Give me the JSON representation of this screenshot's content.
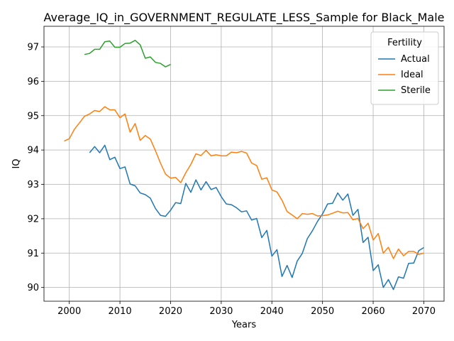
{
  "chart_data": {
    "type": "line",
    "title": "Average_IQ_in_GOVERNMENT_REGULATE_LESS_Sample for Black_Male",
    "xlabel": "Years",
    "ylabel": "IQ",
    "xlim": [
      1995,
      2074
    ],
    "ylim": [
      89.6,
      97.6
    ],
    "xticks": [
      2000,
      2010,
      2020,
      2030,
      2040,
      2050,
      2060,
      2070
    ],
    "yticks": [
      90,
      91,
      92,
      93,
      94,
      95,
      96,
      97
    ],
    "grid": true,
    "legend": {
      "title": "Fertility",
      "placement": "top-right"
    },
    "series": [
      {
        "name": "Actual",
        "color": "#1f77b4",
        "x": [
          2004,
          2005,
          2006,
          2007,
          2008,
          2009,
          2010,
          2011,
          2012,
          2013,
          2014,
          2015,
          2016,
          2017,
          2018,
          2019,
          2020,
          2021,
          2022,
          2023,
          2024,
          2025,
          2026,
          2027,
          2028,
          2029,
          2030,
          2031,
          2032,
          2033,
          2034,
          2035,
          2036,
          2037,
          2038,
          2039,
          2040,
          2041,
          2042,
          2043,
          2044,
          2045,
          2046,
          2047,
          2048,
          2049,
          2050,
          2051,
          2052,
          2053,
          2054,
          2055,
          2056,
          2057,
          2058,
          2059,
          2060,
          2061,
          2062,
          2063,
          2064,
          2065,
          2066,
          2067,
          2068,
          2069,
          2070
        ],
        "y": [
          93.92,
          94.1,
          93.92,
          94.14,
          93.72,
          93.79,
          93.46,
          93.51,
          93.01,
          92.96,
          92.75,
          92.7,
          92.6,
          92.3,
          92.1,
          92.07,
          92.25,
          92.47,
          92.44,
          93.03,
          92.77,
          93.13,
          92.84,
          93.08,
          92.85,
          92.91,
          92.64,
          92.43,
          92.41,
          92.32,
          92.2,
          92.23,
          91.96,
          92.01,
          91.45,
          91.66,
          90.91,
          91.1,
          90.32,
          90.64,
          90.29,
          90.77,
          90.99,
          91.42,
          91.65,
          91.92,
          92.14,
          92.43,
          92.45,
          92.75,
          92.54,
          92.72,
          92.1,
          92.27,
          91.31,
          91.46,
          90.49,
          90.66,
          90.0,
          90.23,
          89.94,
          90.31,
          90.27,
          90.7,
          90.71,
          91.07,
          91.16
        ]
      },
      {
        "name": "Ideal",
        "color": "#ff7f0e",
        "x": [
          1999,
          2000,
          2001,
          2002,
          2003,
          2004,
          2005,
          2006,
          2007,
          2008,
          2009,
          2010,
          2011,
          2012,
          2013,
          2014,
          2015,
          2016,
          2017,
          2018,
          2019,
          2020,
          2021,
          2022,
          2023,
          2024,
          2025,
          2026,
          2027,
          2028,
          2029,
          2030,
          2031,
          2032,
          2033,
          2034,
          2035,
          2036,
          2037,
          2038,
          2039,
          2040,
          2041,
          2042,
          2043,
          2044,
          2045,
          2046,
          2047,
          2048,
          2049,
          2050,
          2051,
          2052,
          2053,
          2054,
          2055,
          2056,
          2057,
          2058,
          2059,
          2060,
          2061,
          2062,
          2063,
          2064,
          2065,
          2066,
          2067,
          2068,
          2069,
          2070
        ],
        "y": [
          94.26,
          94.33,
          94.6,
          94.79,
          94.98,
          95.05,
          95.15,
          95.12,
          95.26,
          95.17,
          95.17,
          94.94,
          95.05,
          94.52,
          94.77,
          94.28,
          94.42,
          94.32,
          93.98,
          93.62,
          93.3,
          93.18,
          93.2,
          93.05,
          93.34,
          93.58,
          93.89,
          93.84,
          93.99,
          93.83,
          93.86,
          93.83,
          93.83,
          93.94,
          93.92,
          93.96,
          93.91,
          93.62,
          93.55,
          93.15,
          93.19,
          92.84,
          92.78,
          92.54,
          92.21,
          92.11,
          92.0,
          92.15,
          92.13,
          92.15,
          92.08,
          92.09,
          92.11,
          92.16,
          92.22,
          92.17,
          92.18,
          91.97,
          92.01,
          91.71,
          91.87,
          91.38,
          91.57,
          91.0,
          91.17,
          90.84,
          91.12,
          90.92,
          91.05,
          91.05,
          90.96,
          91.0
        ]
      },
      {
        "name": "Sterile",
        "color": "#2ca02c",
        "x": [
          2003,
          2004,
          2005,
          2006,
          2007,
          2008,
          2009,
          2010,
          2011,
          2012,
          2013,
          2014,
          2015,
          2016,
          2017,
          2018,
          2019,
          2020
        ],
        "y": [
          96.78,
          96.81,
          96.93,
          96.93,
          97.15,
          97.17,
          96.99,
          96.99,
          97.1,
          97.11,
          97.19,
          97.06,
          96.67,
          96.71,
          96.55,
          96.52,
          96.42,
          96.49
        ]
      }
    ]
  }
}
